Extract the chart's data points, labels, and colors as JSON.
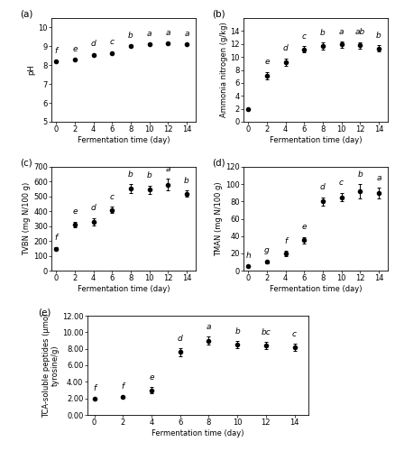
{
  "ph": {
    "x": [
      0,
      2,
      4,
      6,
      8,
      10,
      12,
      14
    ],
    "y": [
      8.2,
      8.3,
      8.55,
      8.65,
      9.0,
      9.1,
      9.15,
      9.1
    ],
    "yerr": [
      0.05,
      0.05,
      0.05,
      0.05,
      0.05,
      0.05,
      0.05,
      0.05
    ],
    "letters": [
      "f",
      "e",
      "d",
      "c",
      "b",
      "a",
      "a",
      "a"
    ],
    "ylabel": "pH",
    "ylim": [
      5,
      10.5
    ],
    "yticks": [
      5,
      6,
      7,
      8,
      9,
      10
    ],
    "label": "(a)"
  },
  "ammonia": {
    "x": [
      0,
      2,
      4,
      6,
      8,
      10,
      12,
      14
    ],
    "y": [
      2.0,
      7.1,
      9.2,
      11.2,
      11.7,
      11.9,
      11.8,
      11.3
    ],
    "yerr": [
      0.15,
      0.6,
      0.6,
      0.5,
      0.5,
      0.5,
      0.5,
      0.5
    ],
    "letters": [
      "",
      "e",
      "d",
      "c",
      "b",
      "a",
      "ab",
      "b"
    ],
    "ylabel": "Ammonia nitrogen (g/kg)",
    "ylim": [
      0,
      16
    ],
    "yticks": [
      0,
      2,
      4,
      6,
      8,
      10,
      12,
      14
    ],
    "label": "(b)"
  },
  "tvbn": {
    "x": [
      0,
      2,
      4,
      6,
      8,
      10,
      12,
      14
    ],
    "y": [
      148,
      310,
      330,
      410,
      555,
      545,
      580,
      520
    ],
    "yerr": [
      10,
      20,
      25,
      20,
      30,
      30,
      40,
      20
    ],
    "letters": [
      "f",
      "e",
      "d",
      "c",
      "b",
      "b",
      "a",
      "b"
    ],
    "ylabel": "TVBN (mg N/100 g)",
    "ylim": [
      0,
      700
    ],
    "yticks": [
      0,
      100,
      200,
      300,
      400,
      500,
      600,
      700
    ],
    "label": "(c)"
  },
  "tman": {
    "x": [
      0,
      2,
      4,
      6,
      8,
      10,
      12,
      14
    ],
    "y": [
      5,
      10,
      20,
      35,
      80,
      85,
      92,
      90
    ],
    "yerr": [
      1,
      2,
      3,
      4,
      5,
      5,
      8,
      6
    ],
    "letters": [
      "h",
      "g",
      "f",
      "e",
      "d",
      "c",
      "b",
      "a"
    ],
    "ylabel": "TMAN (mg N/100 g)",
    "ylim": [
      0,
      120
    ],
    "yticks": [
      0,
      20,
      40,
      60,
      80,
      100,
      120
    ],
    "label": "(d)"
  },
  "tca": {
    "x": [
      0,
      2,
      4,
      6,
      8,
      10,
      12,
      14
    ],
    "y": [
      2.0,
      2.2,
      3.0,
      7.6,
      9.0,
      8.5,
      8.4,
      8.2
    ],
    "yerr": [
      0.1,
      0.1,
      0.4,
      0.5,
      0.5,
      0.4,
      0.4,
      0.4
    ],
    "letters": [
      "f",
      "f",
      "e",
      "d",
      "a",
      "b",
      "bc",
      "c"
    ],
    "ylabel": "TCA-soluble peptides (μmol\ntyrosine/g)",
    "ylim": [
      0,
      12
    ],
    "yticks": [
      0.0,
      2.0,
      4.0,
      6.0,
      8.0,
      10.0,
      12.0
    ],
    "label": "(e)"
  },
  "xlabel": "Fermentation time (day)",
  "xticks": [
    0,
    2,
    4,
    6,
    8,
    10,
    12,
    14
  ],
  "line_color": "black",
  "marker": "o",
  "markersize": 3,
  "markerfacecolor": "black",
  "fontsize_label": 6,
  "fontsize_letter": 6.5,
  "fontsize_tick": 6,
  "fontsize_panel": 7.5
}
